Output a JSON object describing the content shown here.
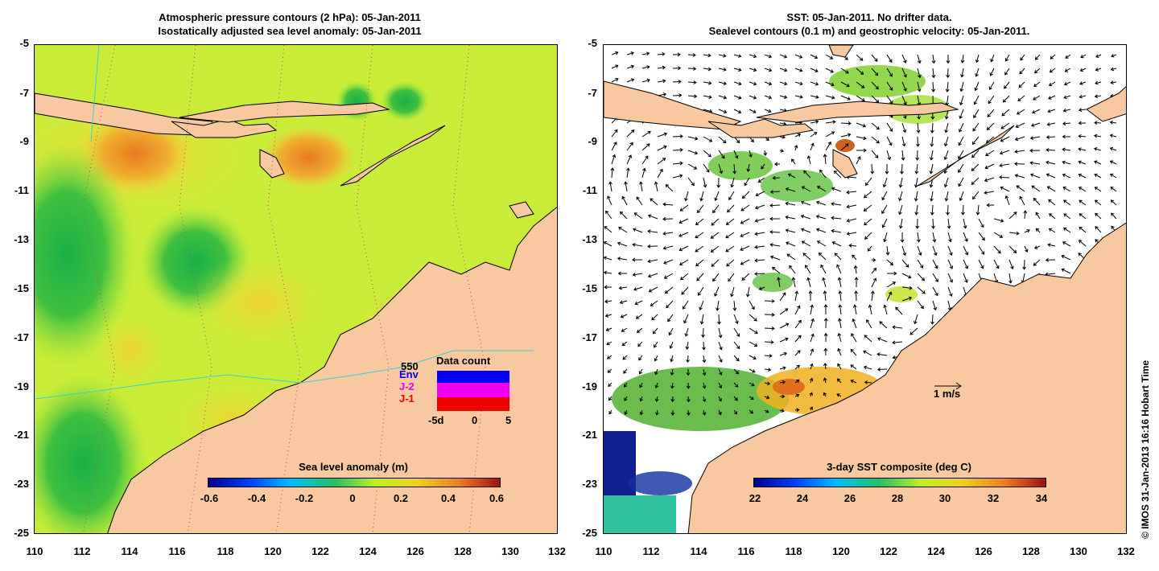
{
  "left_panel": {
    "title_line1": "Atmospheric pressure contours (2 hPa): 05-Jan-2011",
    "title_line2": "Isostatically adjusted sea level anomaly: 05-Jan-2011",
    "y_ticks": [
      "-5",
      "-7",
      "-9",
      "-11",
      "-13",
      "-15",
      "-17",
      "-19",
      "-21",
      "-23",
      "-25"
    ],
    "x_ticks": [
      "110",
      "112",
      "114",
      "116",
      "118",
      "120",
      "122",
      "124",
      "126",
      "128",
      "130",
      "132"
    ],
    "colorbar_label": "Sea level anomaly (m)",
    "colorbar_ticks": [
      "-0.6",
      "-0.4",
      "-0.2",
      "0",
      "0.2",
      "0.4",
      "0.6"
    ],
    "inset": {
      "title": "Data count",
      "max_label": "550",
      "series": [
        "Env",
        "J-2",
        "J-1"
      ],
      "series_colors": [
        "#0000ee",
        "#ee00ee",
        "#ee0000"
      ],
      "x_labels": [
        "-5d",
        "0",
        "5"
      ]
    }
  },
  "right_panel": {
    "title_line1": "SST: 05-Jan-2011. No drifter data.",
    "title_line2": "Sealevel contours (0.1 m) and geostrophic velocity: 05-Jan-2011.",
    "y_ticks": [
      "-5",
      "-7",
      "-9",
      "-11",
      "-13",
      "-15",
      "-17",
      "-19",
      "-21",
      "-23",
      "-25"
    ],
    "x_ticks": [
      "110",
      "112",
      "114",
      "116",
      "118",
      "120",
      "122",
      "124",
      "126",
      "128",
      "130",
      "132"
    ],
    "colorbar_label": "3-day SST composite (deg C)",
    "colorbar_ticks": [
      "22",
      "24",
      "26",
      "28",
      "30",
      "32",
      "34"
    ],
    "velocity_scale_label": "1 m/s"
  },
  "copyright": "© IMOS 31-Jan-2013 16:16 Hobart Time",
  "colors": {
    "land": "#f8c8a0",
    "sla_base": "#c8f040",
    "sla_high": "#f0a030",
    "sla_low": "#30c050"
  }
}
